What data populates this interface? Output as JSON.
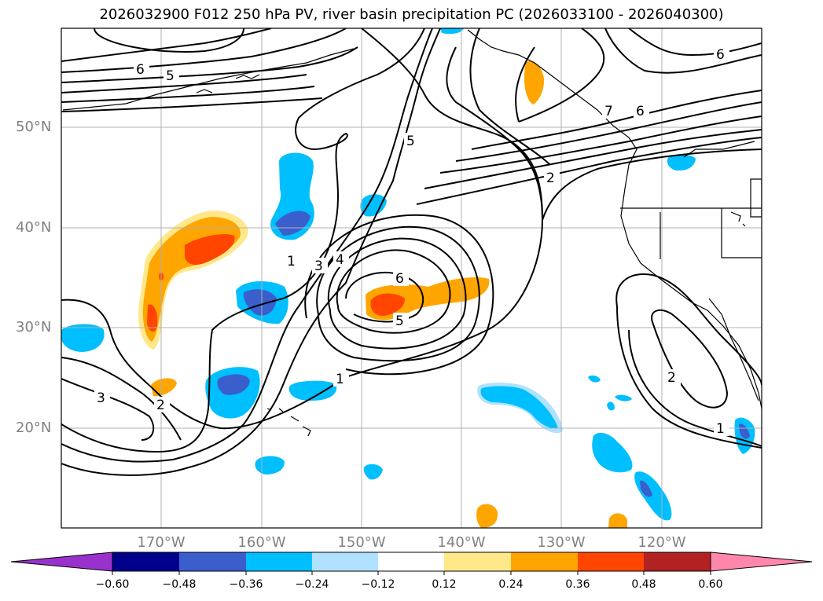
{
  "title": "2026032900 F012 250 hPa PV, river basin precipitation PC (2026033100 - 2026040300)",
  "axes": {
    "lat_labels": [
      "50°N",
      "40°N",
      "30°N",
      "20°N"
    ],
    "lon_labels": [
      "170°W",
      "160°W",
      "150°W",
      "140°W",
      "130°W",
      "120°W"
    ]
  },
  "colorbar": {
    "ticks": [
      "−0.60",
      "−0.48",
      "−0.36",
      "−0.24",
      "−0.12",
      "0.12",
      "0.24",
      "0.36",
      "0.48",
      "0.60"
    ],
    "colors": [
      "#9932cc",
      "#00008b",
      "#3a5fcd",
      "#00bfff",
      "#b0e2ff",
      "#ffffff",
      "#ffe88a",
      "#ffa500",
      "#ff4500",
      "#b22222",
      "#ff88aa"
    ]
  },
  "contour_labels": {
    "nw_6": "6",
    "nw_5": "5",
    "ne_6": "6",
    "ne_7": "7",
    "ne_6b": "6",
    "ne_2": "2",
    "mid_5": "5",
    "mid_1": "1",
    "mid_3": "3",
    "mid_4": "4",
    "low_6": "6",
    "low_5": "5",
    "s_1": "1",
    "sw_3": "3",
    "sw_2": "2",
    "e_2": "2",
    "e_1": "1"
  }
}
